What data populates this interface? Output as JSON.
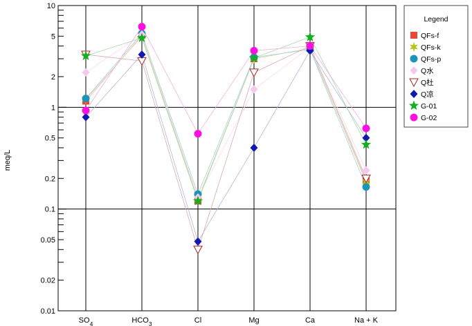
{
  "chart_data": {
    "type": "line",
    "ylabel": "meq/L",
    "yscale": "log",
    "ylim": [
      0.01,
      10
    ],
    "grid": "major-horizontal-at-decades-and-vertical-at-categories",
    "y_tick_labels": [
      "10",
      "5",
      "2",
      "1",
      "0.5",
      "0.2",
      "0.1",
      "0.05",
      "0.02",
      "0.01"
    ],
    "y_tick_values": [
      10,
      5,
      2,
      1,
      0.5,
      0.2,
      0.1,
      0.05,
      0.02,
      0.01
    ],
    "categories": [
      {
        "main": "SO",
        "sub": "4"
      },
      {
        "main": "HCO",
        "sub": "3"
      },
      {
        "main": "Cl",
        "sub": ""
      },
      {
        "main": "Mg",
        "sub": ""
      },
      {
        "main": "Ca",
        "sub": ""
      },
      {
        "main": "Na + K",
        "sub": ""
      }
    ],
    "legend": {
      "title": "Legend",
      "placement": "right"
    },
    "series": [
      {
        "name": "QFs-f",
        "marker": "square",
        "color": "#e8473a",
        "values": [
          1.15,
          5.1,
          0.12,
          3.0,
          3.8,
          0.19
        ]
      },
      {
        "name": "QFs-k",
        "marker": "star6",
        "color": "#b8c41a",
        "values": [
          1.2,
          5.0,
          0.125,
          3.0,
          3.8,
          0.185
        ]
      },
      {
        "name": "QFs-p",
        "marker": "circle",
        "color": "#1a95b8",
        "values": [
          1.22,
          5.3,
          0.14,
          3.1,
          3.7,
          0.165
        ]
      },
      {
        "name": "Q水",
        "marker": "diamond",
        "color": "#f5c8ec",
        "values": [
          2.2,
          5.2,
          0.13,
          1.5,
          3.9,
          0.24
        ]
      },
      {
        "name": "Q杜",
        "marker": "triangle-down-open",
        "color": "#b02020",
        "values": [
          3.3,
          2.85,
          0.04,
          2.2,
          4.0,
          0.2
        ]
      },
      {
        "name": "Q凉",
        "marker": "diamond",
        "color": "#1018b0",
        "values": [
          0.8,
          3.3,
          0.048,
          0.4,
          3.6,
          0.5
        ]
      },
      {
        "name": "G-01",
        "marker": "star5",
        "color": "#10b020",
        "values": [
          3.2,
          4.8,
          0.12,
          3.05,
          4.9,
          0.43
        ]
      },
      {
        "name": "G-02",
        "marker": "circle",
        "color": "#ff10e0",
        "values": [
          0.93,
          6.2,
          0.55,
          3.6,
          4.0,
          0.62
        ]
      }
    ]
  }
}
